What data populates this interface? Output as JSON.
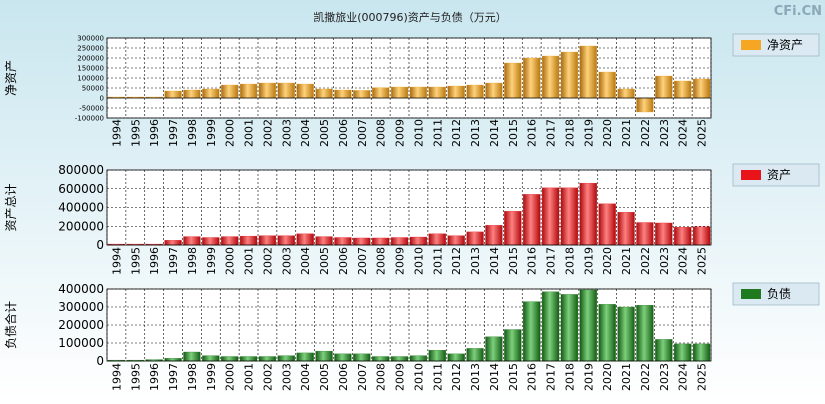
{
  "title": "凯撒旅业(000796)资产与负债（万元）",
  "watermark": "CFi.CN",
  "colors": {
    "background_top": "#c9e6ef",
    "background_bottom": "#ffffff",
    "plot_bg": "#ffffff",
    "grid": "#000000",
    "equity": "#f5a623",
    "assets": "#e8141a",
    "liabilities": "#1f7a1f",
    "legend_bg": "#dbe9f2"
  },
  "chart_data": [
    {
      "type": "bar",
      "id": "equity",
      "ylabel": "净资产",
      "legend": "净资产",
      "legend_position": "top-right",
      "grid": true,
      "ylim": [
        -100000,
        300000
      ],
      "yticks": [
        -100000,
        -50000,
        0,
        50000,
        100000,
        150000,
        200000,
        250000,
        300000
      ],
      "ytick_labels": [
        "-100000",
        "-50000",
        "0",
        "50000",
        "100000",
        "150000",
        "200000",
        "250000",
        "300000"
      ],
      "categories": [
        "1994",
        "1995",
        "1996",
        "1997",
        "1998",
        "1999",
        "2000",
        "2001",
        "2002",
        "2003",
        "2004",
        "2005",
        "2006",
        "2007",
        "2008",
        "2009",
        "2010",
        "2011",
        "2012",
        "2013",
        "2014",
        "2015",
        "2016",
        "2017",
        "2018",
        "2019",
        "2020",
        "2021",
        "2022",
        "2023",
        "2024",
        "2025"
      ],
      "values": [
        5000,
        5000,
        5000,
        35000,
        40000,
        45000,
        65000,
        70000,
        75000,
        75000,
        70000,
        45000,
        40000,
        38000,
        52000,
        55000,
        55000,
        55000,
        60000,
        65000,
        75000,
        175000,
        200000,
        210000,
        230000,
        260000,
        130000,
        45000,
        -70000,
        110000,
        85000,
        95000
      ]
    },
    {
      "type": "bar",
      "id": "assets",
      "ylabel": "资产总计",
      "legend": "资产",
      "legend_position": "top-right",
      "grid": true,
      "ylim": [
        0,
        800000
      ],
      "yticks": [
        0,
        200000,
        400000,
        600000,
        800000
      ],
      "ytick_labels": [
        "0",
        "200000",
        "400000",
        "600000",
        "800000"
      ],
      "categories": [
        "1994",
        "1995",
        "1996",
        "1997",
        "1998",
        "1999",
        "2000",
        "2001",
        "2002",
        "2003",
        "2004",
        "2005",
        "2006",
        "2007",
        "2008",
        "2009",
        "2010",
        "2011",
        "2012",
        "2013",
        "2014",
        "2015",
        "2016",
        "2017",
        "2018",
        "2019",
        "2020",
        "2021",
        "2022",
        "2023",
        "2024",
        "2025"
      ],
      "values": [
        10000,
        10000,
        10000,
        50000,
        90000,
        80000,
        90000,
        95000,
        100000,
        100000,
        120000,
        90000,
        80000,
        75000,
        75000,
        80000,
        85000,
        120000,
        100000,
        140000,
        210000,
        360000,
        540000,
        610000,
        610000,
        660000,
        440000,
        350000,
        240000,
        235000,
        190000,
        195000
      ]
    },
    {
      "type": "bar",
      "id": "liabilities",
      "ylabel": "负债合计",
      "legend": "负债",
      "legend_position": "top-right",
      "grid": true,
      "ylim": [
        0,
        400000
      ],
      "yticks": [
        0,
        100000,
        200000,
        300000,
        400000
      ],
      "ytick_labels": [
        "0",
        "100000",
        "200000",
        "300000",
        "400000"
      ],
      "categories": [
        "1994",
        "1995",
        "1996",
        "1997",
        "1998",
        "1999",
        "2000",
        "2001",
        "2002",
        "2003",
        "2004",
        "2005",
        "2006",
        "2007",
        "2008",
        "2009",
        "2010",
        "2011",
        "2012",
        "2013",
        "2014",
        "2015",
        "2016",
        "2017",
        "2018",
        "2019",
        "2020",
        "2021",
        "2022",
        "2023",
        "2024",
        "2025"
      ],
      "values": [
        5000,
        5000,
        8000,
        15000,
        50000,
        30000,
        25000,
        25000,
        25000,
        30000,
        45000,
        55000,
        40000,
        40000,
        25000,
        25000,
        30000,
        60000,
        40000,
        70000,
        135000,
        175000,
        330000,
        385000,
        370000,
        395000,
        315000,
        300000,
        310000,
        120000,
        95000,
        95000
      ]
    }
  ]
}
